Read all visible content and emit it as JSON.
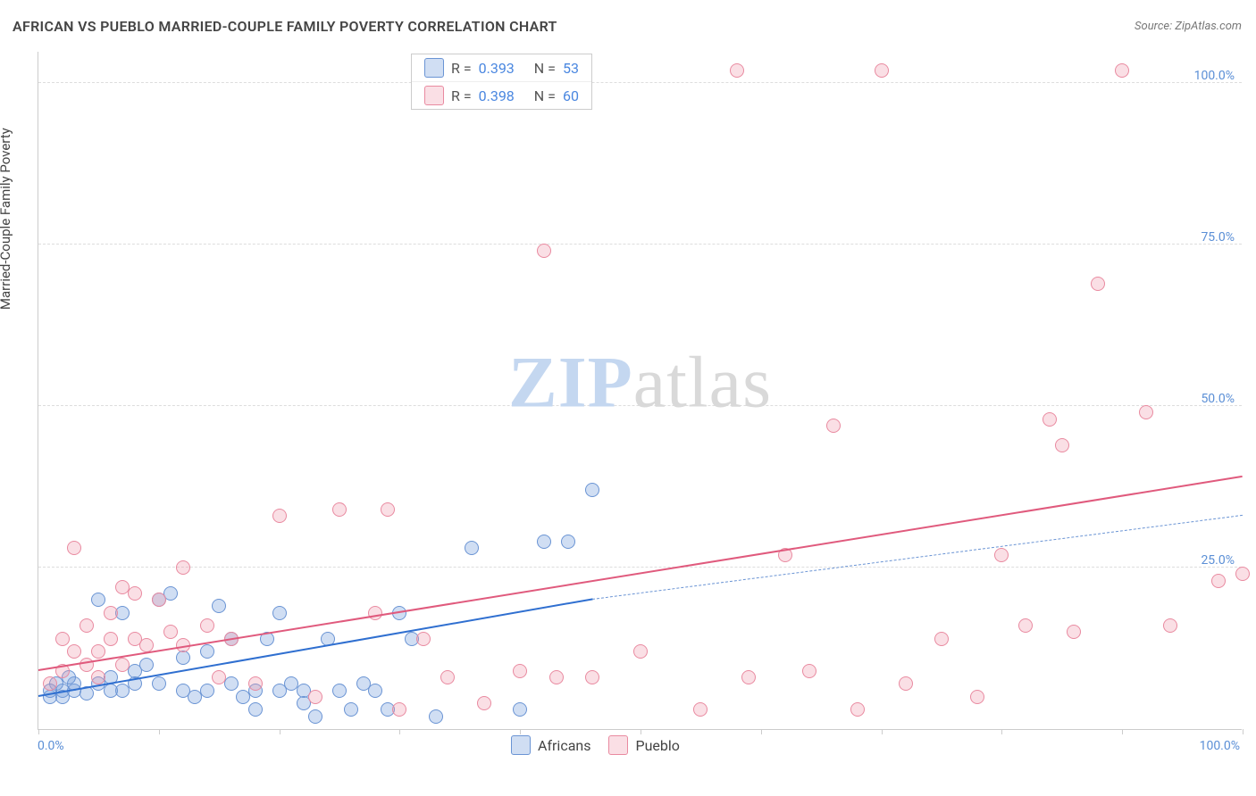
{
  "title": "AFRICAN VS PUEBLO MARRIED-COUPLE FAMILY POVERTY CORRELATION CHART",
  "source": "Source: ZipAtlas.com",
  "y_axis_title": "Married-Couple Family Poverty",
  "watermark_a": "ZIP",
  "watermark_b": "atlas",
  "chart": {
    "type": "scatter",
    "x_range": [
      0,
      100
    ],
    "y_range": [
      0,
      105
    ],
    "y_gridlines": [
      25,
      50,
      75,
      100
    ],
    "y_tick_labels": [
      "25.0%",
      "50.0%",
      "75.0%",
      "100.0%"
    ],
    "x_ticks": [
      0,
      10,
      20,
      30,
      40,
      50,
      60,
      70,
      80,
      90,
      100
    ],
    "x_label_0": "0.0%",
    "x_label_100": "100.0%",
    "plot_bg": "#ffffff",
    "grid_color": "#dddddd",
    "axis_color": "#cccccc",
    "marker_radius": 8,
    "marker_stroke": 1.5,
    "series": [
      {
        "name": "Africans",
        "fill": "rgba(120,160,220,0.35)",
        "stroke": "#6a94d4",
        "r_value": "0.393",
        "n_value": "53",
        "trend": {
          "x1": 0,
          "y1": 5,
          "x2": 46,
          "y2": 20,
          "color": "#2f6fd0",
          "width": 2.5,
          "dash": false
        },
        "trend_ext": {
          "x1": 46,
          "y1": 20,
          "x2": 100,
          "y2": 33,
          "color": "#6a94d4",
          "width": 1.8,
          "dash": true
        },
        "points": [
          [
            1,
            5
          ],
          [
            2,
            6
          ],
          [
            1.5,
            7
          ],
          [
            3,
            6
          ],
          [
            2,
            5
          ],
          [
            4,
            5.5
          ],
          [
            3,
            7
          ],
          [
            2.5,
            8
          ],
          [
            1,
            6
          ],
          [
            5,
            7
          ],
          [
            6,
            8
          ],
          [
            5,
            20
          ],
          [
            7,
            6
          ],
          [
            8,
            9
          ],
          [
            7,
            18
          ],
          [
            6,
            6
          ],
          [
            8,
            7
          ],
          [
            9,
            10
          ],
          [
            10,
            20
          ],
          [
            10,
            7
          ],
          [
            11,
            21
          ],
          [
            12,
            11
          ],
          [
            12,
            6
          ],
          [
            13,
            5
          ],
          [
            14,
            12
          ],
          [
            14,
            6
          ],
          [
            15,
            19
          ],
          [
            16,
            7
          ],
          [
            16,
            14
          ],
          [
            17,
            5
          ],
          [
            18,
            6
          ],
          [
            18,
            3
          ],
          [
            19,
            14
          ],
          [
            20,
            6
          ],
          [
            20,
            18
          ],
          [
            21,
            7
          ],
          [
            22,
            6
          ],
          [
            22,
            4
          ],
          [
            23,
            2
          ],
          [
            24,
            14
          ],
          [
            25,
            6
          ],
          [
            26,
            3
          ],
          [
            27,
            7
          ],
          [
            28,
            6
          ],
          [
            29,
            3
          ],
          [
            30,
            18
          ],
          [
            31,
            14
          ],
          [
            33,
            2
          ],
          [
            36,
            28
          ],
          [
            40,
            3
          ],
          [
            42,
            29
          ],
          [
            44,
            29
          ],
          [
            46,
            37
          ]
        ]
      },
      {
        "name": "Pueblo",
        "fill": "rgba(240,150,170,0.30)",
        "stroke": "#e98aa0",
        "r_value": "0.398",
        "n_value": "60",
        "trend": {
          "x1": 0,
          "y1": 9,
          "x2": 100,
          "y2": 39,
          "color": "#e05a7d",
          "width": 2.5,
          "dash": false
        },
        "points": [
          [
            1,
            7
          ],
          [
            2,
            9
          ],
          [
            2,
            14
          ],
          [
            3,
            12
          ],
          [
            3,
            28
          ],
          [
            4,
            10
          ],
          [
            4,
            16
          ],
          [
            5,
            12
          ],
          [
            5,
            8
          ],
          [
            6,
            18
          ],
          [
            6,
            14
          ],
          [
            7,
            22
          ],
          [
            7,
            10
          ],
          [
            8,
            14
          ],
          [
            8,
            21
          ],
          [
            9,
            13
          ],
          [
            10,
            20
          ],
          [
            11,
            15
          ],
          [
            12,
            13
          ],
          [
            12,
            25
          ],
          [
            14,
            16
          ],
          [
            15,
            8
          ],
          [
            16,
            14
          ],
          [
            18,
            7
          ],
          [
            20,
            33
          ],
          [
            23,
            5
          ],
          [
            25,
            34
          ],
          [
            28,
            18
          ],
          [
            29,
            34
          ],
          [
            30,
            3
          ],
          [
            32,
            14
          ],
          [
            34,
            8
          ],
          [
            37,
            4
          ],
          [
            40,
            9
          ],
          [
            42,
            74
          ],
          [
            43,
            8
          ],
          [
            46,
            8
          ],
          [
            50,
            12
          ],
          [
            55,
            3
          ],
          [
            58,
            102
          ],
          [
            59,
            8
          ],
          [
            62,
            27
          ],
          [
            64,
            9
          ],
          [
            66,
            47
          ],
          [
            68,
            3
          ],
          [
            70,
            102
          ],
          [
            72,
            7
          ],
          [
            75,
            14
          ],
          [
            78,
            5
          ],
          [
            80,
            27
          ],
          [
            82,
            16
          ],
          [
            84,
            48
          ],
          [
            85,
            44
          ],
          [
            86,
            15
          ],
          [
            88,
            69
          ],
          [
            90,
            102
          ],
          [
            92,
            49
          ],
          [
            94,
            16
          ],
          [
            98,
            23
          ],
          [
            100,
            24
          ]
        ]
      }
    ]
  },
  "legend_bottom": [
    {
      "label": "Africans",
      "fill": "rgba(120,160,220,0.35)",
      "stroke": "#6a94d4"
    },
    {
      "label": "Pueblo",
      "fill": "rgba(240,150,170,0.30)",
      "stroke": "#e98aa0"
    }
  ]
}
